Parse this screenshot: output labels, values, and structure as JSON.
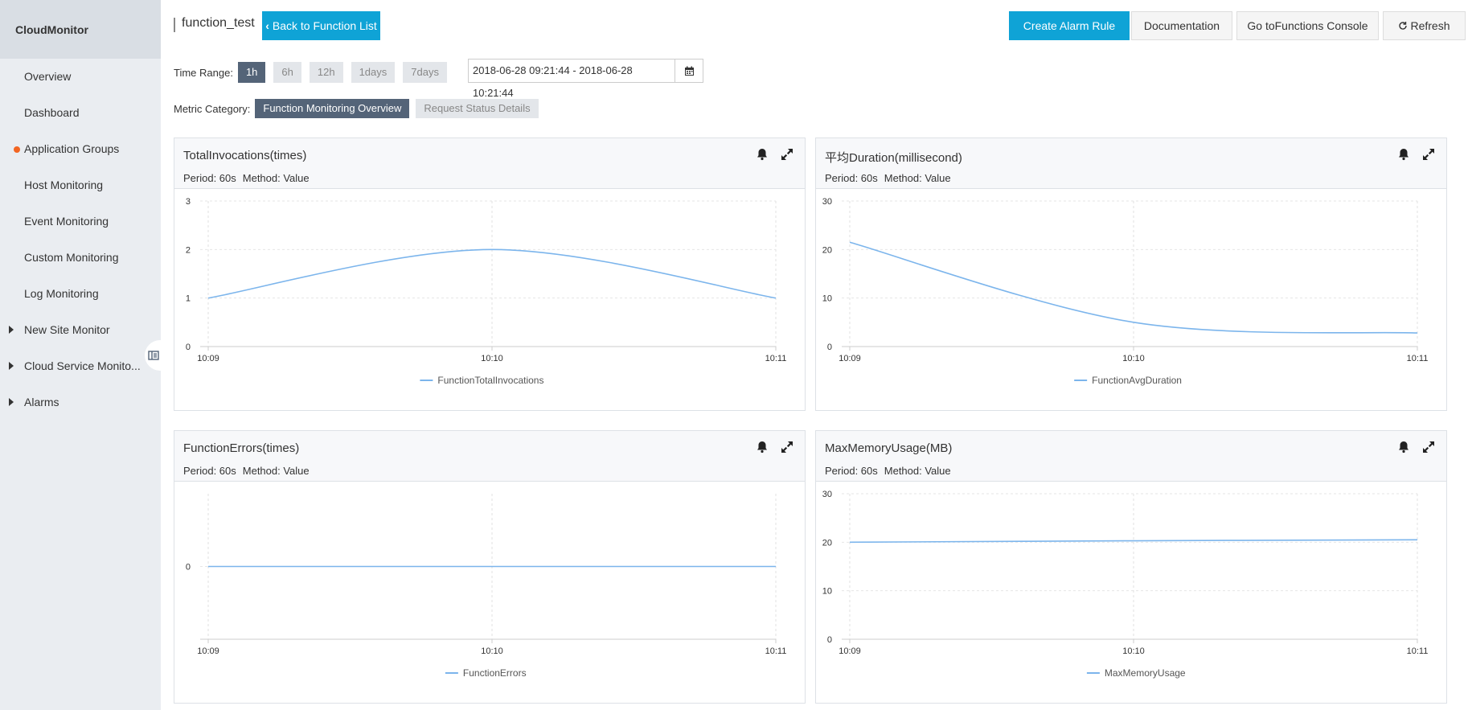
{
  "sidebar": {
    "title": "CloudMonitor",
    "items": [
      {
        "label": "Overview",
        "marker": ""
      },
      {
        "label": "Dashboard",
        "marker": ""
      },
      {
        "label": "Application Groups",
        "marker": "dot"
      },
      {
        "label": "Host Monitoring",
        "marker": ""
      },
      {
        "label": "Event Monitoring",
        "marker": ""
      },
      {
        "label": "Custom Monitoring",
        "marker": ""
      },
      {
        "label": "Log Monitoring",
        "marker": ""
      },
      {
        "label": "New Site Monitor",
        "marker": "caret"
      },
      {
        "label": "Cloud Service Monito...",
        "marker": "caret"
      },
      {
        "label": "Alarms",
        "marker": "caret"
      }
    ]
  },
  "header": {
    "title": "function_test",
    "back_label": "Back to Function List",
    "create_alarm_label": "Create Alarm Rule",
    "documentation_label": "Documentation",
    "console_label": "Go toFunctions Console",
    "refresh_label": "Refresh"
  },
  "time_range": {
    "label": "Time Range:",
    "options": [
      "1h",
      "6h",
      "12h",
      "1days",
      "7days"
    ],
    "selected": "1h",
    "date_range": "2018-06-28 09:21:44 - 2018-06-28 10:21:44"
  },
  "metric_category": {
    "label": "Metric Category:",
    "options": [
      "Function Monitoring Overview",
      "Request Status Details"
    ],
    "selected": "Function Monitoring Overview"
  },
  "colors": {
    "accent": "#0fa3d6",
    "active_tab": "#546478",
    "series": "#7cb5ec",
    "alert_dot": "#f26522"
  },
  "chart_data": [
    {
      "type": "line",
      "title": "TotalInvocations(times)",
      "period": "Period: 60s",
      "method": "Method: Value",
      "categories": [
        "10:09",
        "10:10",
        "10:11"
      ],
      "yticks": [
        0,
        1,
        2,
        3
      ],
      "ylim": [
        0,
        3
      ],
      "series": [
        {
          "name": "FunctionTotalInvocations",
          "values": [
            1,
            2,
            1
          ]
        }
      ],
      "grid": true,
      "legend": "bottom"
    },
    {
      "type": "line",
      "title": "平均Duration(millisecond)",
      "period": "Period: 60s",
      "method": "Method: Value",
      "categories": [
        "10:09",
        "10:10",
        "10:11"
      ],
      "yticks": [
        0,
        10,
        20,
        30
      ],
      "ylim": [
        0,
        30
      ],
      "series": [
        {
          "name": "FunctionAvgDuration",
          "values": [
            21.5,
            5,
            2.8
          ]
        }
      ],
      "grid": true,
      "legend": "bottom"
    },
    {
      "type": "line",
      "title": "FunctionErrors(times)",
      "period": "Period: 60s",
      "method": "Method: Value",
      "categories": [
        "10:09",
        "10:10",
        "10:11"
      ],
      "yticks": [
        0
      ],
      "ylim": [
        -1,
        1
      ],
      "series": [
        {
          "name": "FunctionErrors",
          "values": [
            0,
            0,
            0
          ]
        }
      ],
      "grid": true,
      "legend": "bottom"
    },
    {
      "type": "line",
      "title": "MaxMemoryUsage(MB)",
      "period": "Period: 60s",
      "method": "Method: Value",
      "categories": [
        "10:09",
        "10:10",
        "10:11"
      ],
      "yticks": [
        0,
        10,
        20,
        30
      ],
      "ylim": [
        0,
        30
      ],
      "series": [
        {
          "name": "MaxMemoryUsage",
          "values": [
            20,
            20.3,
            20.5
          ]
        }
      ],
      "grid": true,
      "legend": "bottom"
    }
  ]
}
